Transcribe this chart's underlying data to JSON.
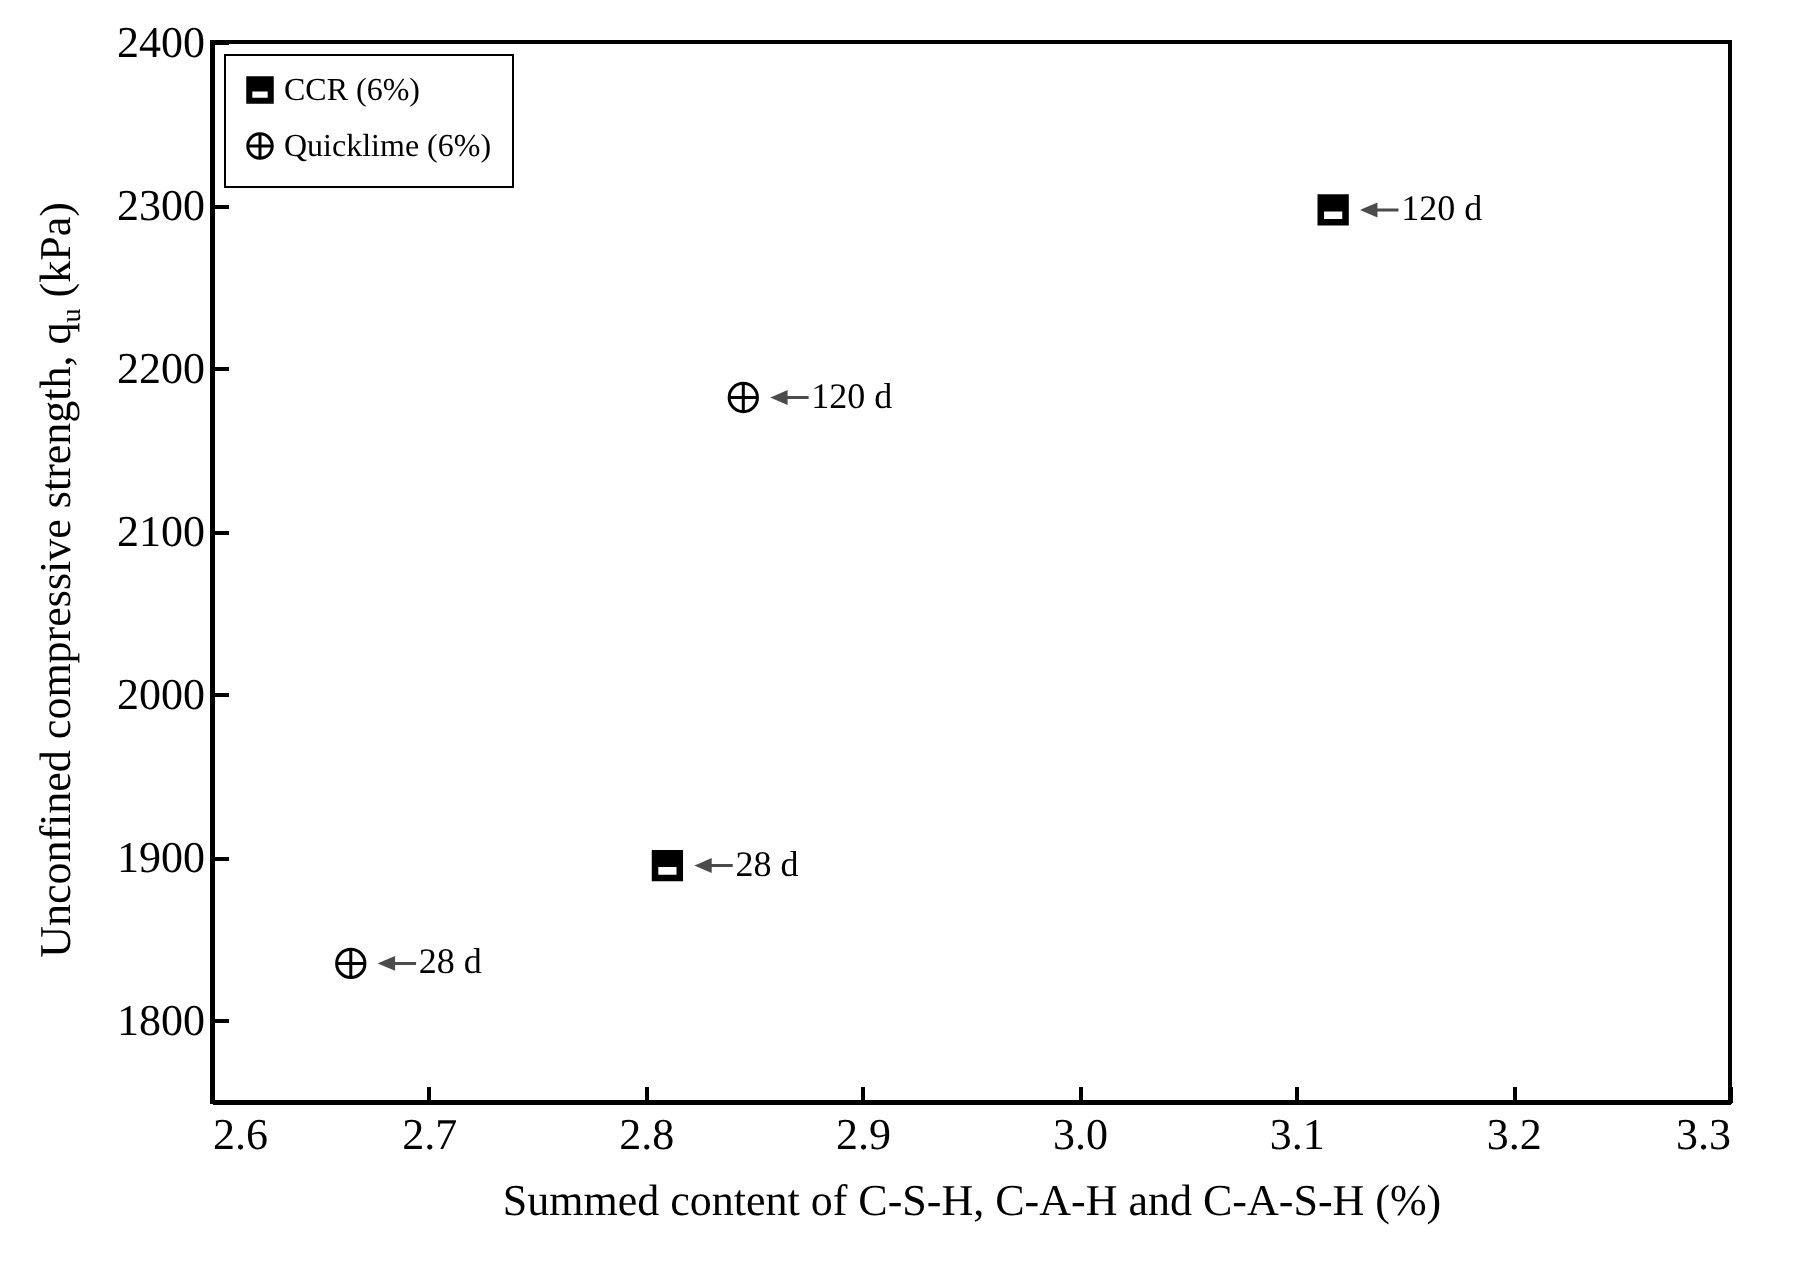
{
  "chart_data": {
    "type": "scatter",
    "xlabel": "Summed content of C-S-H, C-A-H and C-A-S-H (%)",
    "ylabel": "Unconfined compressive strength, q$_{u}$ (kPa)",
    "series": [
      {
        "name": "CCR (6%)",
        "color": "#000000",
        "marker": "square",
        "x": [
          2.81,
          3.117
        ],
        "values": [
          1895,
          2297
        ]
      },
      {
        "name": "Quicklime (6%)",
        "color": "#000000",
        "marker": "cross",
        "x": [
          2.664,
          2.845
        ],
        "values": [
          1835,
          2182
        ]
      }
    ],
    "annotations": [
      {
        "text": "28 d",
        "x": 2.81,
        "y": 1895
      },
      {
        "text": "120 d",
        "x": 3.117,
        "y": 2297
      },
      {
        "text": "28 d",
        "x": 2.664,
        "y": 1835
      },
      {
        "text": "120 d",
        "x": 2.845,
        "y": 2182
      }
    ],
    "xlim": [
      2.6,
      3.3
    ],
    "xticks": [
      2.6,
      2.7,
      2.8,
      2.9,
      {
        "value": 3,
        "label": "3.0"
      },
      3.1,
      3.2,
      3.3
    ],
    "ylim": [
      1750,
      2400
    ],
    "yticks": [
      {
        "value": 1800,
        "label": "1800"
      },
      {
        "value": 1900,
        "label": "1900"
      },
      {
        "value": 2000,
        "label": "2000"
      },
      {
        "value": 2100,
        "label": "2100"
      },
      {
        "value": 2200,
        "label": "2200"
      },
      {
        "value": 2300,
        "label": "2300"
      },
      {
        "value": 2400,
        "label": "2400"
      }
    ],
    "grid": false,
    "legend": "top left"
  }
}
